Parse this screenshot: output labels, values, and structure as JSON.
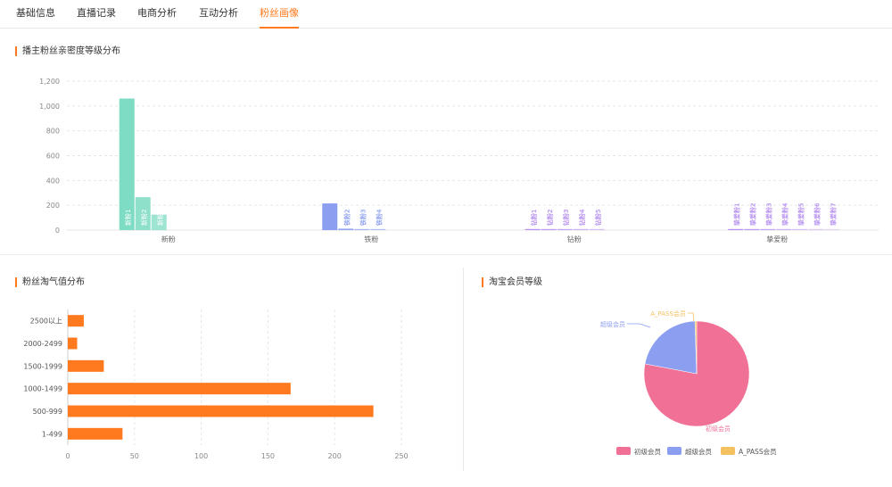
{
  "tabs": [
    {
      "label": "基础信息",
      "active": false
    },
    {
      "label": "直播记录",
      "active": false
    },
    {
      "label": "电商分析",
      "active": false
    },
    {
      "label": "互动分析",
      "active": false
    },
    {
      "label": "粉丝画像",
      "active": true
    }
  ],
  "sections": {
    "intimacy": "播主粉丝亲密度等级分布",
    "taoqi": "粉丝淘气值分布",
    "member": "淘宝会员等级"
  },
  "colors": {
    "accent": "#ff7a1f",
    "bar_orange": "#ff7a1f",
    "green": "#7fdcc4",
    "blue": "#8c9ef0",
    "purple": "#b48ef0",
    "pink": "#f07096",
    "yellow": "#f5c060"
  },
  "chart_data": [
    {
      "type": "bar",
      "ylim": [
        0,
        1200
      ],
      "yticks": [
        "0",
        "200",
        "400",
        "600",
        "800",
        "1,000",
        "1,200"
      ],
      "ytick_values": [
        0,
        200,
        400,
        600,
        800,
        1000,
        1200
      ],
      "categories": [
        "新粉",
        "铁粉",
        "钻粉",
        "挚爱粉"
      ],
      "groups": [
        {
          "category": "新粉",
          "bars": [
            {
              "label": "新粉1",
              "value": 1060
            },
            {
              "label": "新粉2",
              "value": 265
            },
            {
              "label": "新粉3",
              "value": 125
            }
          ]
        },
        {
          "category": "铁粉",
          "bars": [
            {
              "label": "铁粉1",
              "value": 215
            },
            {
              "label": "铁粉2",
              "value": 12
            },
            {
              "label": "铁粉3",
              "value": 8
            },
            {
              "label": "铁粉4",
              "value": 6
            }
          ]
        },
        {
          "category": "钻粉",
          "bars": [
            {
              "label": "钻粉1",
              "value": 4
            },
            {
              "label": "钻粉2",
              "value": 3
            },
            {
              "label": "钻粉3",
              "value": 6
            },
            {
              "label": "钻粉4",
              "value": 5
            },
            {
              "label": "钻粉5",
              "value": 4
            }
          ]
        },
        {
          "category": "挚爱粉",
          "bars": [
            {
              "label": "挚爱粉1",
              "value": 2
            },
            {
              "label": "挚爱粉2",
              "value": 2
            },
            {
              "label": "挚爱粉3",
              "value": 2
            },
            {
              "label": "挚爱粉4",
              "value": 2
            },
            {
              "label": "挚爱粉5",
              "value": 2
            },
            {
              "label": "挚爱粉6",
              "value": 2
            },
            {
              "label": "挚爱粉7",
              "value": 2
            }
          ]
        }
      ]
    },
    {
      "type": "bar",
      "orientation": "horizontal",
      "categories": [
        "2500以上",
        "2000-2499",
        "1500-1999",
        "1000-1499",
        "500-999",
        "1-499"
      ],
      "values": [
        12,
        7,
        27,
        167,
        229,
        41
      ],
      "xlim": [
        0,
        250
      ],
      "xticks": [
        0,
        50,
        100,
        150,
        200,
        250
      ]
    },
    {
      "type": "pie",
      "labels": [
        "初级会员",
        "超级会员",
        "A_PASS会员"
      ],
      "values": [
        78,
        21.5,
        0.5
      ],
      "legend_placement": "bottom"
    }
  ]
}
